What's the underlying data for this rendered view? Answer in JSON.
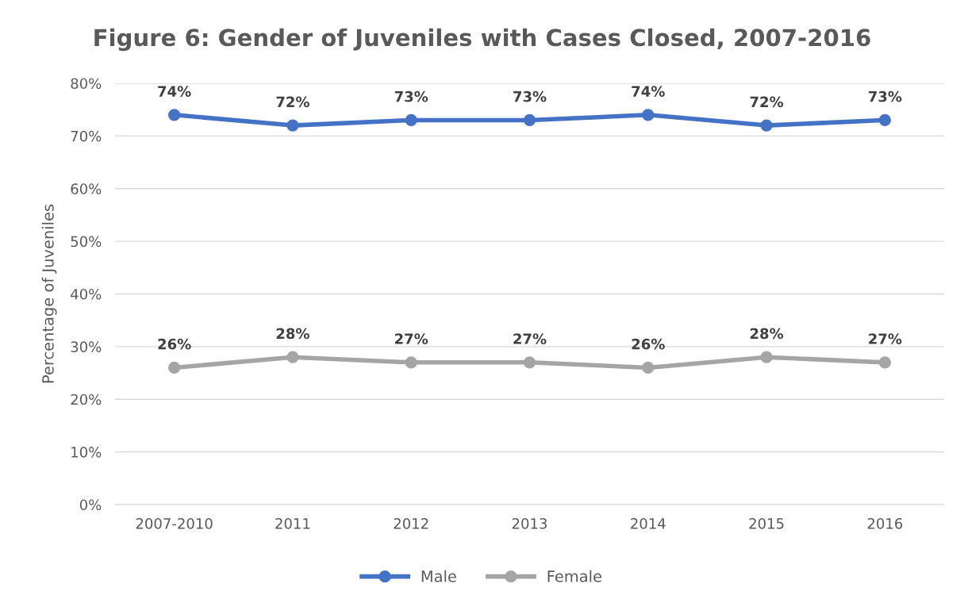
{
  "chart_data": {
    "type": "line",
    "title": "Figure 6: Gender of Juveniles with Cases Closed, 2007-2016",
    "ylabel": "Percentage of Juveniles",
    "categories": [
      "2007-2010",
      "2011",
      "2012",
      "2013",
      "2014",
      "2015",
      "2016"
    ],
    "series": [
      {
        "name": "Male",
        "color": "#4472c4",
        "values": [
          74,
          72,
          73,
          73,
          74,
          72,
          73
        ],
        "value_labels": [
          "74%",
          "72%",
          "73%",
          "73%",
          "74%",
          "72%",
          "73%"
        ]
      },
      {
        "name": "Female",
        "color": "#a5a5a5",
        "values": [
          26,
          28,
          27,
          27,
          26,
          28,
          27
        ],
        "value_labels": [
          "26%",
          "28%",
          "27%",
          "27%",
          "26%",
          "28%",
          "27%"
        ]
      }
    ],
    "ylim": [
      0,
      80
    ],
    "yticks": [
      {
        "value": 0,
        "label": "0%"
      },
      {
        "value": 10,
        "label": "10%"
      },
      {
        "value": 20,
        "label": "20%"
      },
      {
        "value": 30,
        "label": "30%"
      },
      {
        "value": 40,
        "label": "40%"
      },
      {
        "value": 50,
        "label": "50%"
      },
      {
        "value": 60,
        "label": "60%"
      },
      {
        "value": 70,
        "label": "70%"
      },
      {
        "value": 80,
        "label": "80%"
      }
    ],
    "grid": "y",
    "legend": "bottom",
    "marker": "circle",
    "line_style": "solid"
  }
}
